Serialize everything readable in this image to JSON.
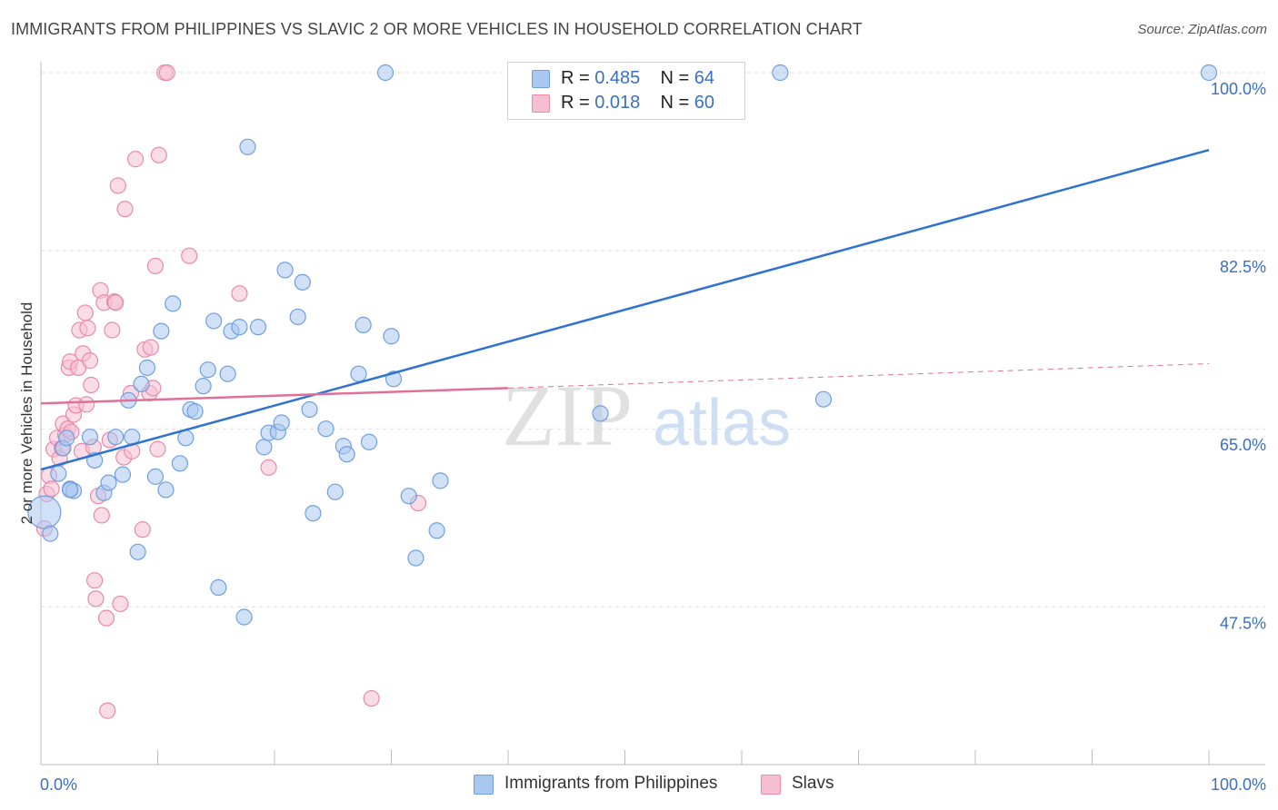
{
  "title": "IMMIGRANTS FROM PHILIPPINES VS SLAVIC 2 OR MORE VEHICLES IN HOUSEHOLD CORRELATION CHART",
  "source": "Source: ZipAtlas.com",
  "watermark": {
    "zip": "ZIP",
    "atlas": "atlas"
  },
  "legend": {
    "r_label": "R =",
    "n_label": "N =",
    "rows": [
      {
        "r": "0.485",
        "n": "64"
      },
      {
        "r": "0.018",
        "n": "60"
      }
    ]
  },
  "colors": {
    "blue_fill": "#a9c8f0",
    "blue_stroke": "#6f9fe0",
    "blue_line": "#2f72d0",
    "pink_fill": "#f6bfd1",
    "pink_stroke": "#e98aab",
    "pink_line": "#e0709a",
    "tick_text": "#3a6fc4"
  },
  "chart_data": {
    "type": "scatter",
    "title": "IMMIGRANTS FROM PHILIPPINES VS SLAVIC 2 OR MORE VEHICLES IN HOUSEHOLD CORRELATION CHART",
    "xlabel": "",
    "ylabel": "2 or more Vehicles in Household",
    "x_tick_labels": [
      "0.0%",
      "100.0%"
    ],
    "y_tick_labels": [
      "100.0%",
      "82.5%",
      "65.0%",
      "47.5%"
    ],
    "y_ticks": [
      100.0,
      82.5,
      65.0,
      47.5
    ],
    "xlim": [
      0,
      100
    ],
    "ylim": [
      32,
      102
    ],
    "grid": "horizontal dashed",
    "legend_position": "top-center",
    "series": [
      {
        "name": "Immigrants from Philippines",
        "color": "#a9c8f0",
        "trend": {
          "x": [
            0,
            100
          ],
          "y": [
            61.0,
            92.4
          ]
        },
        "points": [
          [
            0.3,
            56.8
          ],
          [
            0.8,
            54.7
          ],
          [
            1.5,
            60.6
          ],
          [
            1.9,
            63.1
          ],
          [
            2.2,
            64.1
          ],
          [
            2.5,
            59.1
          ],
          [
            2.8,
            58.9
          ],
          [
            4.2,
            64.2
          ],
          [
            4.6,
            61.9
          ],
          [
            5.4,
            58.7
          ],
          [
            5.8,
            59.7
          ],
          [
            6.4,
            64.2
          ],
          [
            7.0,
            60.5
          ],
          [
            7.5,
            67.8
          ],
          [
            7.8,
            64.2
          ],
          [
            8.3,
            52.9
          ],
          [
            8.6,
            69.4
          ],
          [
            9.1,
            71.0
          ],
          [
            9.8,
            60.3
          ],
          [
            10.3,
            74.6
          ],
          [
            10.7,
            59.0
          ],
          [
            11.3,
            77.3
          ],
          [
            11.9,
            61.6
          ],
          [
            12.4,
            64.1
          ],
          [
            12.8,
            66.9
          ],
          [
            13.2,
            66.7
          ],
          [
            13.9,
            69.2
          ],
          [
            14.3,
            70.8
          ],
          [
            14.8,
            75.6
          ],
          [
            15.2,
            49.4
          ],
          [
            16.0,
            70.4
          ],
          [
            16.3,
            74.6
          ],
          [
            17.0,
            75.0
          ],
          [
            17.4,
            46.5
          ],
          [
            17.7,
            92.7
          ],
          [
            18.6,
            75.0
          ],
          [
            19.1,
            63.2
          ],
          [
            19.5,
            64.6
          ],
          [
            20.3,
            64.7
          ],
          [
            20.6,
            65.6
          ],
          [
            20.9,
            80.6
          ],
          [
            22.0,
            76.0
          ],
          [
            22.4,
            79.4
          ],
          [
            23.0,
            66.9
          ],
          [
            23.3,
            56.7
          ],
          [
            24.4,
            65.0
          ],
          [
            25.2,
            58.8
          ],
          [
            25.9,
            63.3
          ],
          [
            26.2,
            62.5
          ],
          [
            27.2,
            70.4
          ],
          [
            27.6,
            75.2
          ],
          [
            28.1,
            63.7
          ],
          [
            29.5,
            100.0
          ],
          [
            30.0,
            74.1
          ],
          [
            30.2,
            69.9
          ],
          [
            31.5,
            58.4
          ],
          [
            32.1,
            52.3
          ],
          [
            33.9,
            55.0
          ],
          [
            34.2,
            59.9
          ],
          [
            47.9,
            66.5
          ],
          [
            63.3,
            100.0
          ],
          [
            67.0,
            67.9
          ],
          [
            100.0,
            100.0
          ],
          [
            2.5,
            59.0
          ]
        ]
      },
      {
        "name": "Slavs",
        "color": "#f6bfd1",
        "trend": {
          "x": [
            0,
            40,
            100
          ],
          "y": [
            67.5,
            69.0,
            71.4
          ],
          "solid_until": 40
        },
        "points": [
          [
            0.3,
            55.2
          ],
          [
            0.5,
            58.6
          ],
          [
            0.7,
            60.4
          ],
          [
            0.9,
            59.1
          ],
          [
            1.1,
            63.0
          ],
          [
            1.4,
            64.1
          ],
          [
            1.6,
            62.1
          ],
          [
            1.8,
            63.1
          ],
          [
            1.9,
            65.5
          ],
          [
            2.1,
            64.4
          ],
          [
            2.3,
            65.0
          ],
          [
            2.4,
            71.0
          ],
          [
            2.5,
            71.6
          ],
          [
            2.6,
            64.7
          ],
          [
            2.8,
            66.4
          ],
          [
            3.0,
            67.3
          ],
          [
            3.2,
            71.0
          ],
          [
            3.3,
            74.7
          ],
          [
            3.5,
            62.8
          ],
          [
            3.6,
            72.4
          ],
          [
            3.8,
            76.4
          ],
          [
            3.9,
            67.4
          ],
          [
            4.0,
            74.9
          ],
          [
            4.2,
            71.7
          ],
          [
            4.3,
            69.3
          ],
          [
            4.5,
            63.2
          ],
          [
            4.6,
            50.1
          ],
          [
            4.7,
            48.3
          ],
          [
            4.9,
            58.4
          ],
          [
            5.1,
            78.6
          ],
          [
            5.2,
            56.5
          ],
          [
            5.4,
            77.4
          ],
          [
            5.6,
            46.4
          ],
          [
            5.7,
            37.3
          ],
          [
            5.9,
            63.9
          ],
          [
            6.1,
            74.7
          ],
          [
            6.3,
            77.5
          ],
          [
            6.4,
            77.4
          ],
          [
            6.6,
            88.9
          ],
          [
            6.8,
            47.8
          ],
          [
            7.1,
            62.2
          ],
          [
            7.2,
            86.6
          ],
          [
            7.7,
            68.5
          ],
          [
            7.8,
            62.8
          ],
          [
            8.1,
            91.5
          ],
          [
            8.7,
            55.1
          ],
          [
            8.9,
            72.8
          ],
          [
            9.3,
            68.5
          ],
          [
            9.4,
            73.0
          ],
          [
            9.6,
            69.0
          ],
          [
            9.8,
            81.0
          ],
          [
            10.0,
            63.0
          ],
          [
            10.1,
            91.9
          ],
          [
            10.6,
            100.0
          ],
          [
            10.8,
            100.0
          ],
          [
            12.7,
            82.0
          ],
          [
            17.0,
            78.3
          ],
          [
            19.5,
            61.2
          ],
          [
            28.3,
            38.5
          ],
          [
            32.3,
            57.7
          ]
        ]
      }
    ],
    "bottom_legend": [
      "Immigrants from Philippines",
      "Slavs"
    ]
  }
}
